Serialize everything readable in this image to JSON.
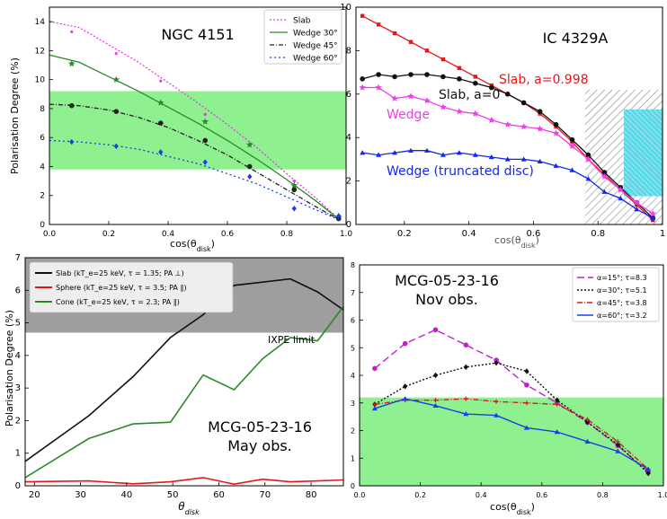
{
  "chart_data": [
    {
      "type": "line",
      "title": "NGC 4151",
      "xlabel": "cos(θ_disk)",
      "ylabel": "Polarisation Degree (%)",
      "xlim": [
        0,
        1.0
      ],
      "ylim": [
        0,
        15
      ],
      "xticks": [
        "0.0",
        "0.2",
        "0.4",
        "0.6",
        "0.8",
        "1.0"
      ],
      "yticks": [
        "0",
        "2",
        "4",
        "6",
        "8",
        "10",
        "12",
        "14"
      ],
      "legend_position": "top-right",
      "band": {
        "y": [
          3.8,
          9.2
        ],
        "color": "#8ef08e"
      },
      "series": [
        {
          "name": "Slab",
          "color": "#e040e0",
          "curve": {
            "x": [
              0,
              0.1,
              0.2,
              0.3,
              0.4,
              0.5,
              0.6,
              0.7,
              0.8,
              0.9,
              0.98
            ],
            "y": [
              14.0,
              13.6,
              12.4,
              11.2,
              9.8,
              8.4,
              6.9,
              5.3,
              3.5,
              1.8,
              0.3
            ]
          },
          "points": {
            "x": [
              0.075,
              0.225,
              0.375,
              0.525,
              0.675,
              0.825,
              0.975
            ],
            "y": [
              13.3,
              11.8,
              9.9,
              7.6,
              5.5,
              3.0,
              0.4
            ]
          }
        },
        {
          "name": "Wedge 30°",
          "color": "#2a8a2a",
          "curve": {
            "x": [
              0,
              0.1,
              0.2,
              0.3,
              0.4,
              0.5,
              0.6,
              0.7,
              0.8,
              0.9,
              0.98
            ],
            "y": [
              11.7,
              11.2,
              10.2,
              9.2,
              8.1,
              7.0,
              5.8,
              4.5,
              3.1,
              1.6,
              0.3
            ]
          },
          "points": {
            "x": [
              0.075,
              0.225,
              0.375,
              0.525,
              0.675,
              0.825,
              0.975
            ],
            "y": [
              11.1,
              10.0,
              8.4,
              7.1,
              5.5,
              2.7,
              0.5
            ]
          }
        },
        {
          "name": "Wedge 45°",
          "color": "#222222",
          "curve": {
            "x": [
              0,
              0.1,
              0.2,
              0.3,
              0.4,
              0.5,
              0.6,
              0.7,
              0.8,
              0.9,
              0.98
            ],
            "y": [
              8.3,
              8.2,
              7.9,
              7.4,
              6.7,
              5.8,
              4.8,
              3.6,
              2.4,
              1.2,
              0.3
            ]
          },
          "points": {
            "x": [
              0.075,
              0.225,
              0.375,
              0.525,
              0.675,
              0.825,
              0.975
            ],
            "y": [
              8.2,
              7.8,
              7.0,
              5.8,
              4.0,
              2.4,
              0.4
            ]
          }
        },
        {
          "name": "Wedge 60°",
          "color": "#1a3ee8",
          "curve": {
            "x": [
              0,
              0.1,
              0.2,
              0.3,
              0.4,
              0.5,
              0.6,
              0.7,
              0.8,
              0.9,
              0.98
            ],
            "y": [
              5.8,
              5.7,
              5.5,
              5.2,
              4.7,
              4.2,
              3.5,
              2.8,
              1.9,
              1.0,
              0.3
            ]
          },
          "points": {
            "x": [
              0.075,
              0.225,
              0.375,
              0.525,
              0.675,
              0.825,
              0.975
            ],
            "y": [
              5.7,
              5.4,
              5.0,
              4.3,
              3.3,
              1.1,
              0.6
            ]
          }
        }
      ]
    },
    {
      "type": "line",
      "title": "IC 4329A",
      "xlabel": "cos(θ_disk)",
      "ylabel": "",
      "xlim": [
        0.05,
        1.0
      ],
      "ylim": [
        0,
        10
      ],
      "xticks": [
        "0.2",
        "0.4",
        "0.6",
        "0.8",
        "1"
      ],
      "yticks": [
        "0",
        "2",
        "4",
        "6",
        "8",
        "10"
      ],
      "hatch_region": {
        "x": [
          0.76,
          1.0
        ],
        "y": [
          0,
          6.2
        ]
      },
      "cyan_region": {
        "x": [
          0.88,
          1.0
        ],
        "y": [
          1.3,
          5.3
        ]
      },
      "series": [
        {
          "name": "Slab, a=0.998",
          "color": "#e8161b",
          "x": [
            0.07,
            0.12,
            0.17,
            0.22,
            0.27,
            0.32,
            0.37,
            0.42,
            0.47,
            0.52,
            0.57,
            0.62,
            0.67,
            0.72,
            0.77,
            0.82,
            0.87,
            0.92,
            0.97
          ],
          "y": [
            9.6,
            9.2,
            8.8,
            8.4,
            8.0,
            7.6,
            7.2,
            6.8,
            6.4,
            6.0,
            5.6,
            5.1,
            4.5,
            3.8,
            3.0,
            2.3,
            1.6,
            0.9,
            0.2
          ]
        },
        {
          "name": "Slab, a=0",
          "color": "#111111",
          "x": [
            0.07,
            0.12,
            0.17,
            0.22,
            0.27,
            0.32,
            0.37,
            0.42,
            0.47,
            0.52,
            0.57,
            0.62,
            0.67,
            0.72,
            0.77,
            0.82,
            0.87,
            0.92,
            0.97
          ],
          "y": [
            6.7,
            6.9,
            6.8,
            6.9,
            6.9,
            6.8,
            6.7,
            6.5,
            6.3,
            6.0,
            5.6,
            5.2,
            4.6,
            3.9,
            3.2,
            2.4,
            1.7,
            1.0,
            0.3
          ]
        },
        {
          "name": "Wedge",
          "color": "#ef3ee8",
          "x": [
            0.07,
            0.12,
            0.17,
            0.22,
            0.27,
            0.32,
            0.37,
            0.42,
            0.47,
            0.52,
            0.57,
            0.62,
            0.67,
            0.72,
            0.77,
            0.82,
            0.87,
            0.92,
            0.97
          ],
          "y": [
            6.3,
            6.3,
            5.8,
            5.9,
            5.7,
            5.4,
            5.2,
            5.1,
            4.8,
            4.6,
            4.5,
            4.4,
            4.2,
            3.6,
            3.0,
            2.2,
            1.6,
            1.0,
            0.5
          ]
        },
        {
          "name": "Wedge (truncated disc)",
          "color": "#1427e8",
          "x": [
            0.07,
            0.12,
            0.17,
            0.22,
            0.27,
            0.32,
            0.37,
            0.42,
            0.47,
            0.52,
            0.57,
            0.62,
            0.67,
            0.72,
            0.77,
            0.82,
            0.87,
            0.92,
            0.97
          ],
          "y": [
            3.3,
            3.2,
            3.3,
            3.4,
            3.4,
            3.2,
            3.3,
            3.2,
            3.1,
            3.0,
            3.0,
            2.9,
            2.7,
            2.5,
            2.1,
            1.5,
            1.2,
            0.7,
            0.3
          ]
        }
      ]
    },
    {
      "type": "line",
      "title": "MCG-05-23-16",
      "subtitle": "May obs.",
      "xlabel": "θ_disk",
      "ylabel": "Polarisation Degree (%)",
      "xlim": [
        18,
        87
      ],
      "ylim": [
        0,
        7
      ],
      "xticks": [
        "20",
        "30",
        "40",
        "50",
        "60",
        "70",
        "80"
      ],
      "yticks": [
        "0",
        "1",
        "2",
        "3",
        "4",
        "5",
        "6",
        "7"
      ],
      "gray_region": {
        "y": [
          4.7,
          7.0
        ],
        "label": "IXPE limit"
      },
      "legend_position": "top-left",
      "series": [
        {
          "name": "Slab (kT_e=25 keV, τ = 1.35; PA ⊥)",
          "color": "#111111",
          "x": [
            18,
            31.8,
            41.4,
            49.5,
            56.6,
            63.3,
            69.5,
            75.5,
            81.4,
            87
          ],
          "y": [
            0.75,
            2.15,
            3.35,
            4.55,
            5.25,
            6.15,
            6.25,
            6.35,
            5.95,
            5.4
          ]
        },
        {
          "name": "Sphere (kT_e=25 keV, τ = 3.5; PA ∥)",
          "color": "#e8161b",
          "x": [
            18,
            31.8,
            41.4,
            49.5,
            56.6,
            63.3,
            69.5,
            75.5,
            81.4,
            87
          ],
          "y": [
            0.12,
            0.15,
            0.06,
            0.12,
            0.25,
            0.05,
            0.2,
            0.12,
            0.15,
            0.18
          ]
        },
        {
          "name": "Cone (kT_e=25 keV, τ = 2.3; PA ∥)",
          "color": "#2a8a2a",
          "x": [
            18,
            31.8,
            41.4,
            49.5,
            56.6,
            63.3,
            69.5,
            75.5,
            81.4,
            87
          ],
          "y": [
            0.25,
            1.45,
            1.9,
            1.95,
            3.4,
            2.95,
            3.9,
            4.55,
            4.45,
            5.5
          ]
        }
      ]
    },
    {
      "type": "line",
      "title": "MCG-05-23-16",
      "subtitle": "Nov obs.",
      "xlabel": "cos(θ_disk)",
      "ylabel": "",
      "xlim": [
        0,
        1.0
      ],
      "ylim": [
        0,
        8
      ],
      "xticks": [
        "0.0",
        "0.2",
        "0.4",
        "0.6",
        "0.8",
        "1.0"
      ],
      "yticks": [
        "0",
        "1",
        "2",
        "3",
        "4",
        "5",
        "6",
        "7",
        "8"
      ],
      "band": {
        "y": [
          0,
          3.2
        ],
        "color": "#8ef08e"
      },
      "legend_position": "top-right",
      "series": [
        {
          "name": "α=15°; τ=8.3",
          "color": "#c020c8",
          "x": [
            0.05,
            0.15,
            0.25,
            0.35,
            0.45,
            0.55,
            0.65,
            0.75,
            0.85,
            0.95
          ],
          "y": [
            4.25,
            5.15,
            5.65,
            5.1,
            4.55,
            3.65,
            3.0,
            2.3,
            1.45,
            0.5
          ]
        },
        {
          "name": "α=30°; τ=5.1",
          "color": "#111111",
          "x": [
            0.05,
            0.15,
            0.25,
            0.35,
            0.45,
            0.55,
            0.65,
            0.75,
            0.85,
            0.95
          ],
          "y": [
            2.95,
            3.6,
            4.0,
            4.3,
            4.45,
            4.15,
            3.1,
            2.3,
            1.5,
            0.45
          ]
        },
        {
          "name": "α=45°; τ=3.8",
          "color": "#d41a1a",
          "x": [
            0.05,
            0.15,
            0.25,
            0.35,
            0.45,
            0.55,
            0.65,
            0.75,
            0.85,
            0.95
          ],
          "y": [
            2.95,
            3.1,
            3.1,
            3.15,
            3.05,
            3.0,
            2.95,
            2.4,
            1.6,
            0.6
          ]
        },
        {
          "name": "α=60°; τ=3.2",
          "color": "#1a3ee8",
          "x": [
            0.05,
            0.15,
            0.25,
            0.35,
            0.45,
            0.55,
            0.65,
            0.75,
            0.85,
            0.95
          ],
          "y": [
            2.8,
            3.15,
            2.9,
            2.6,
            2.55,
            2.1,
            1.95,
            1.6,
            1.25,
            0.6
          ]
        }
      ]
    }
  ]
}
